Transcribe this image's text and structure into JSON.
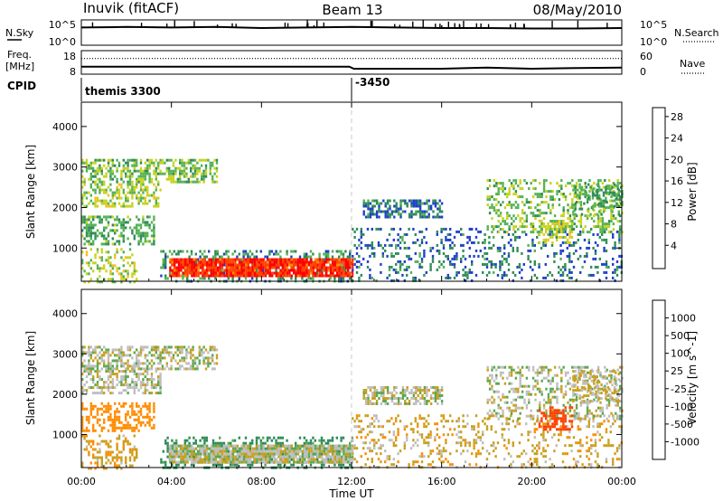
{
  "header": {
    "station": "Inuvik (fitACF)",
    "beam": "Beam 13",
    "date": "08/May/2010"
  },
  "nsky_panel": {
    "left_label": "N.Sky",
    "left_ticks": [
      "10^5",
      "10^0"
    ],
    "right_label": "N.Search",
    "right_ticks": [
      "10^5",
      "10^0"
    ]
  },
  "freq_panel": {
    "left_label_line1": "Freq.",
    "left_label_line2": "[MHz]",
    "left_ticks": [
      "18",
      "8"
    ],
    "right_label": "Nave",
    "right_ticks": [
      "60",
      "0"
    ]
  },
  "cpid_panel": {
    "label": "CPID",
    "segments": [
      {
        "start_hour": 0,
        "text": "themis 3300"
      },
      {
        "start_hour": 12,
        "text": "-3450"
      }
    ]
  },
  "xaxis": {
    "label": "Time UT",
    "ticks": [
      "00:00",
      "04:00",
      "08:00",
      "12:00",
      "16:00",
      "20:00",
      "00:00"
    ],
    "range_hours": [
      0,
      24
    ]
  },
  "colors": {
    "power": [
      "#0000ff",
      "#2040c8",
      "#2e8b57",
      "#55b255",
      "#c8d21e",
      "#f0c020",
      "#ff8c00",
      "#ff4500",
      "#ff0000"
    ],
    "velocity": [
      "#1e3cc8",
      "#1e64a0",
      "#2e8b57",
      "#5aa850",
      "#bebebe",
      "#c8a020",
      "#ff8c00",
      "#ff4000",
      "#ff0000"
    ]
  },
  "chart_data": [
    {
      "type": "line",
      "title": "N.Sky / N.Search",
      "x": [
        0,
        2,
        4,
        6,
        8,
        10,
        12,
        14,
        16,
        18,
        20,
        22,
        24
      ],
      "series": [
        {
          "name": "N.Sky",
          "values": [
            3.5,
            3.6,
            3.5,
            3.6,
            3.4,
            3.5,
            3.6,
            3.5,
            3.4,
            3.4,
            3.3,
            3.3,
            3.4
          ]
        }
      ],
      "ylim": [
        0,
        5
      ],
      "yscale": "log"
    },
    {
      "type": "line",
      "title": "Freq. [MHz] / Nave",
      "x": [
        0,
        2,
        4,
        6,
        8,
        10,
        11.9,
        12.1,
        14,
        16,
        18,
        20,
        22,
        24
      ],
      "series": [
        {
          "name": "Freq.",
          "values": [
            11.2,
            11.2,
            11.2,
            11.2,
            11.2,
            11.2,
            11.2,
            10.3,
            10.3,
            10.3,
            10.8,
            10.3,
            10.6,
            10.8
          ]
        },
        {
          "name": "Nave",
          "values": [
            40,
            40,
            40,
            40,
            40,
            40,
            40,
            40,
            40,
            40,
            40,
            40,
            40,
            40
          ]
        }
      ],
      "ylim": [
        8,
        18
      ],
      "y2lim": [
        0,
        60
      ]
    },
    {
      "type": "heatmap",
      "title": "Power [dB]",
      "xlabel": "Time UT",
      "ylabel": "Slant Range [km]",
      "xlim": [
        0,
        24
      ],
      "ylim": [
        180,
        4600
      ],
      "yticks": [
        1000,
        2000,
        3000,
        4000
      ],
      "colorbar": {
        "label": "Power [dB]",
        "ticks": [
          4,
          8,
          12,
          16,
          20,
          24,
          28
        ],
        "range": [
          0,
          30
        ]
      },
      "regions": [
        {
          "t0": 0.0,
          "t1": 6.0,
          "r0": 2600,
          "r1": 3200,
          "value": 12,
          "density": 0.55
        },
        {
          "t0": 0.0,
          "t1": 3.5,
          "r0": 2050,
          "r1": 2600,
          "value": 14,
          "density": 0.5
        },
        {
          "t0": 0.0,
          "t1": 3.2,
          "r0": 1100,
          "r1": 1800,
          "value": 10,
          "density": 0.45
        },
        {
          "t0": 0.0,
          "t1": 2.5,
          "r0": 180,
          "r1": 1000,
          "value": 14,
          "density": 0.35
        },
        {
          "t0": 3.5,
          "t1": 12.0,
          "r0": 180,
          "r1": 950,
          "value": 8,
          "density": 0.35
        },
        {
          "t0": 3.9,
          "t1": 12.0,
          "r0": 320,
          "r1": 750,
          "value": 28,
          "density": 0.92
        },
        {
          "t0": 12.5,
          "t1": 16.0,
          "r0": 1750,
          "r1": 2200,
          "value": 6,
          "density": 0.6
        },
        {
          "t0": 12.0,
          "t1": 24.0,
          "r0": 200,
          "r1": 1500,
          "value": 6,
          "density": 0.22
        },
        {
          "t0": 18.0,
          "t1": 24.0,
          "r0": 1400,
          "r1": 2700,
          "value": 12,
          "density": 0.35
        },
        {
          "t0": 20.3,
          "t1": 21.8,
          "r0": 1100,
          "r1": 1700,
          "value": 16,
          "density": 0.5
        },
        {
          "t0": 21.8,
          "t1": 24.0,
          "r0": 1800,
          "r1": 2600,
          "value": 10,
          "density": 0.35
        }
      ]
    },
    {
      "type": "heatmap",
      "title": "Velocity [m s^-1]",
      "xlabel": "Time UT",
      "ylabel": "Slant Range [km]",
      "xlim": [
        0,
        24
      ],
      "ylim": [
        180,
        4600
      ],
      "yticks": [
        1000,
        2000,
        3000,
        4000
      ],
      "colorbar": {
        "label": "Velocity [m s^-1]",
        "ticks": [
          1000,
          500,
          100,
          25,
          -25,
          -100,
          -500,
          -1000
        ]
      },
      "regions": [
        {
          "t0": 0.0,
          "t1": 6.0,
          "r0": 2600,
          "r1": 3200,
          "value": 0,
          "density": 0.55
        },
        {
          "t0": 0.0,
          "t1": 3.5,
          "r0": 2050,
          "r1": 2600,
          "value": 0,
          "density": 0.5
        },
        {
          "t0": 0.0,
          "t1": 3.2,
          "r0": 1100,
          "r1": 1800,
          "value": -300,
          "density": 0.5
        },
        {
          "t0": 0.0,
          "t1": 2.5,
          "r0": 180,
          "r1": 1000,
          "value": -80,
          "density": 0.35
        },
        {
          "t0": 3.5,
          "t1": 12.0,
          "r0": 180,
          "r1": 950,
          "value": 150,
          "density": 0.35
        },
        {
          "t0": 3.9,
          "t1": 12.0,
          "r0": 320,
          "r1": 750,
          "value": 0,
          "density": 0.92
        },
        {
          "t0": 12.5,
          "t1": 16.0,
          "r0": 1750,
          "r1": 2200,
          "value": 0,
          "density": 0.6
        },
        {
          "t0": 12.0,
          "t1": 24.0,
          "r0": 200,
          "r1": 1500,
          "value": -60,
          "density": 0.22
        },
        {
          "t0": 18.0,
          "t1": 24.0,
          "r0": 1400,
          "r1": 2700,
          "value": 0,
          "density": 0.35
        },
        {
          "t0": 20.3,
          "t1": 21.8,
          "r0": 1100,
          "r1": 1700,
          "value": -600,
          "density": 0.5
        },
        {
          "t0": 21.8,
          "t1": 24.0,
          "r0": 1800,
          "r1": 2600,
          "value": -40,
          "density": 0.35
        }
      ]
    }
  ]
}
